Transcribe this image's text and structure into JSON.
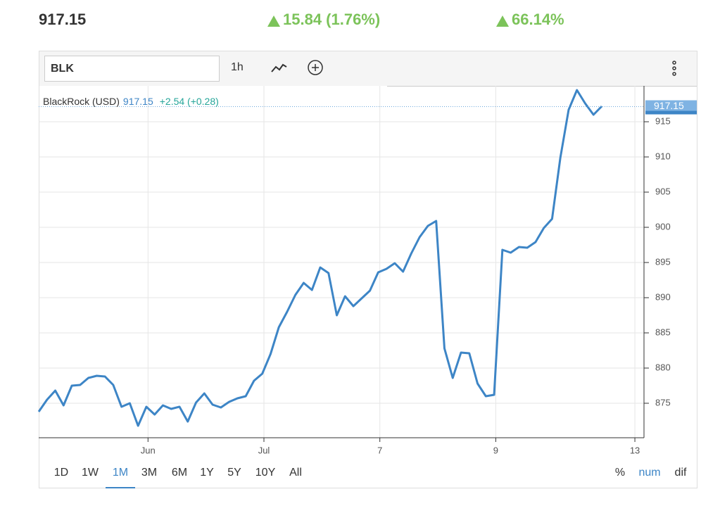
{
  "header": {
    "price": "917.15",
    "change": "15.84 (1.76%)",
    "change_pct": "66.14%"
  },
  "toolbar": {
    "symbol": "BLK",
    "interval": "1h"
  },
  "chart_data": {
    "type": "line",
    "legend": {
      "name": "BlackRock (USD)",
      "price": 917.15,
      "change": "+2.54 (+0.28)"
    },
    "x": [
      0,
      1,
      2,
      3,
      4,
      5,
      6,
      7,
      8,
      9,
      10,
      11,
      12,
      13,
      14,
      15,
      16,
      17,
      18,
      19,
      20,
      21,
      22,
      23,
      24,
      25,
      26,
      27,
      28,
      29,
      30,
      31,
      32,
      33,
      34,
      35,
      36,
      37,
      38,
      39,
      40,
      41,
      42,
      43,
      44,
      45,
      46,
      47,
      48,
      49,
      50,
      51,
      52,
      53,
      54,
      55,
      56,
      57,
      58,
      59,
      60,
      61,
      62,
      63,
      64,
      65,
      66,
      67,
      68
    ],
    "series": [
      {
        "color": "#3d85c6",
        "values": [
          873.8,
          875.5,
          876.8,
          874.7,
          877.5,
          877.6,
          878.6,
          878.9,
          878.8,
          877.6,
          874.5,
          875.0,
          871.8,
          874.5,
          873.4,
          874.7,
          874.2,
          874.5,
          872.4,
          875.1,
          876.4,
          874.8,
          874.4,
          875.2,
          875.7,
          876.0,
          878.2,
          879.2,
          882.0,
          885.8,
          888.0,
          890.4,
          892.1,
          891.1,
          894.3,
          893.5,
          887.5,
          890.2,
          888.8,
          889.9,
          891.0,
          893.6,
          894.1,
          894.9,
          893.7,
          896.3,
          898.6,
          900.2,
          900.9,
          882.8,
          878.6,
          882.2,
          882.1,
          877.8,
          876.0,
          876.2,
          896.8,
          896.4,
          897.2,
          897.1,
          897.9,
          899.9,
          901.2,
          909.9,
          916.7,
          919.5,
          917.6,
          916.0,
          917.2
        ]
      }
    ],
    "xlim": [
      0,
      73.1
    ],
    "xticks": [
      {
        "value": 13.2,
        "label": "Jun"
      },
      {
        "value": 27.2,
        "label": "Jul"
      },
      {
        "value": 41.2,
        "label": "7"
      },
      {
        "value": 55.2,
        "label": "9"
      },
      {
        "value": 72.0,
        "label": "13"
      }
    ],
    "ylim": [
      870.1,
      920.1
    ],
    "yticks": [
      875,
      880,
      885,
      890,
      895,
      900,
      905,
      910,
      915
    ],
    "grid": true
  },
  "ranges": {
    "buttons": [
      "1D",
      "1W",
      "1M",
      "3M",
      "6M",
      "1Y",
      "5Y",
      "10Y",
      "All"
    ],
    "selected": "1M"
  },
  "modes": {
    "buttons": [
      "%",
      "num",
      "dif"
    ],
    "selected": "num"
  }
}
